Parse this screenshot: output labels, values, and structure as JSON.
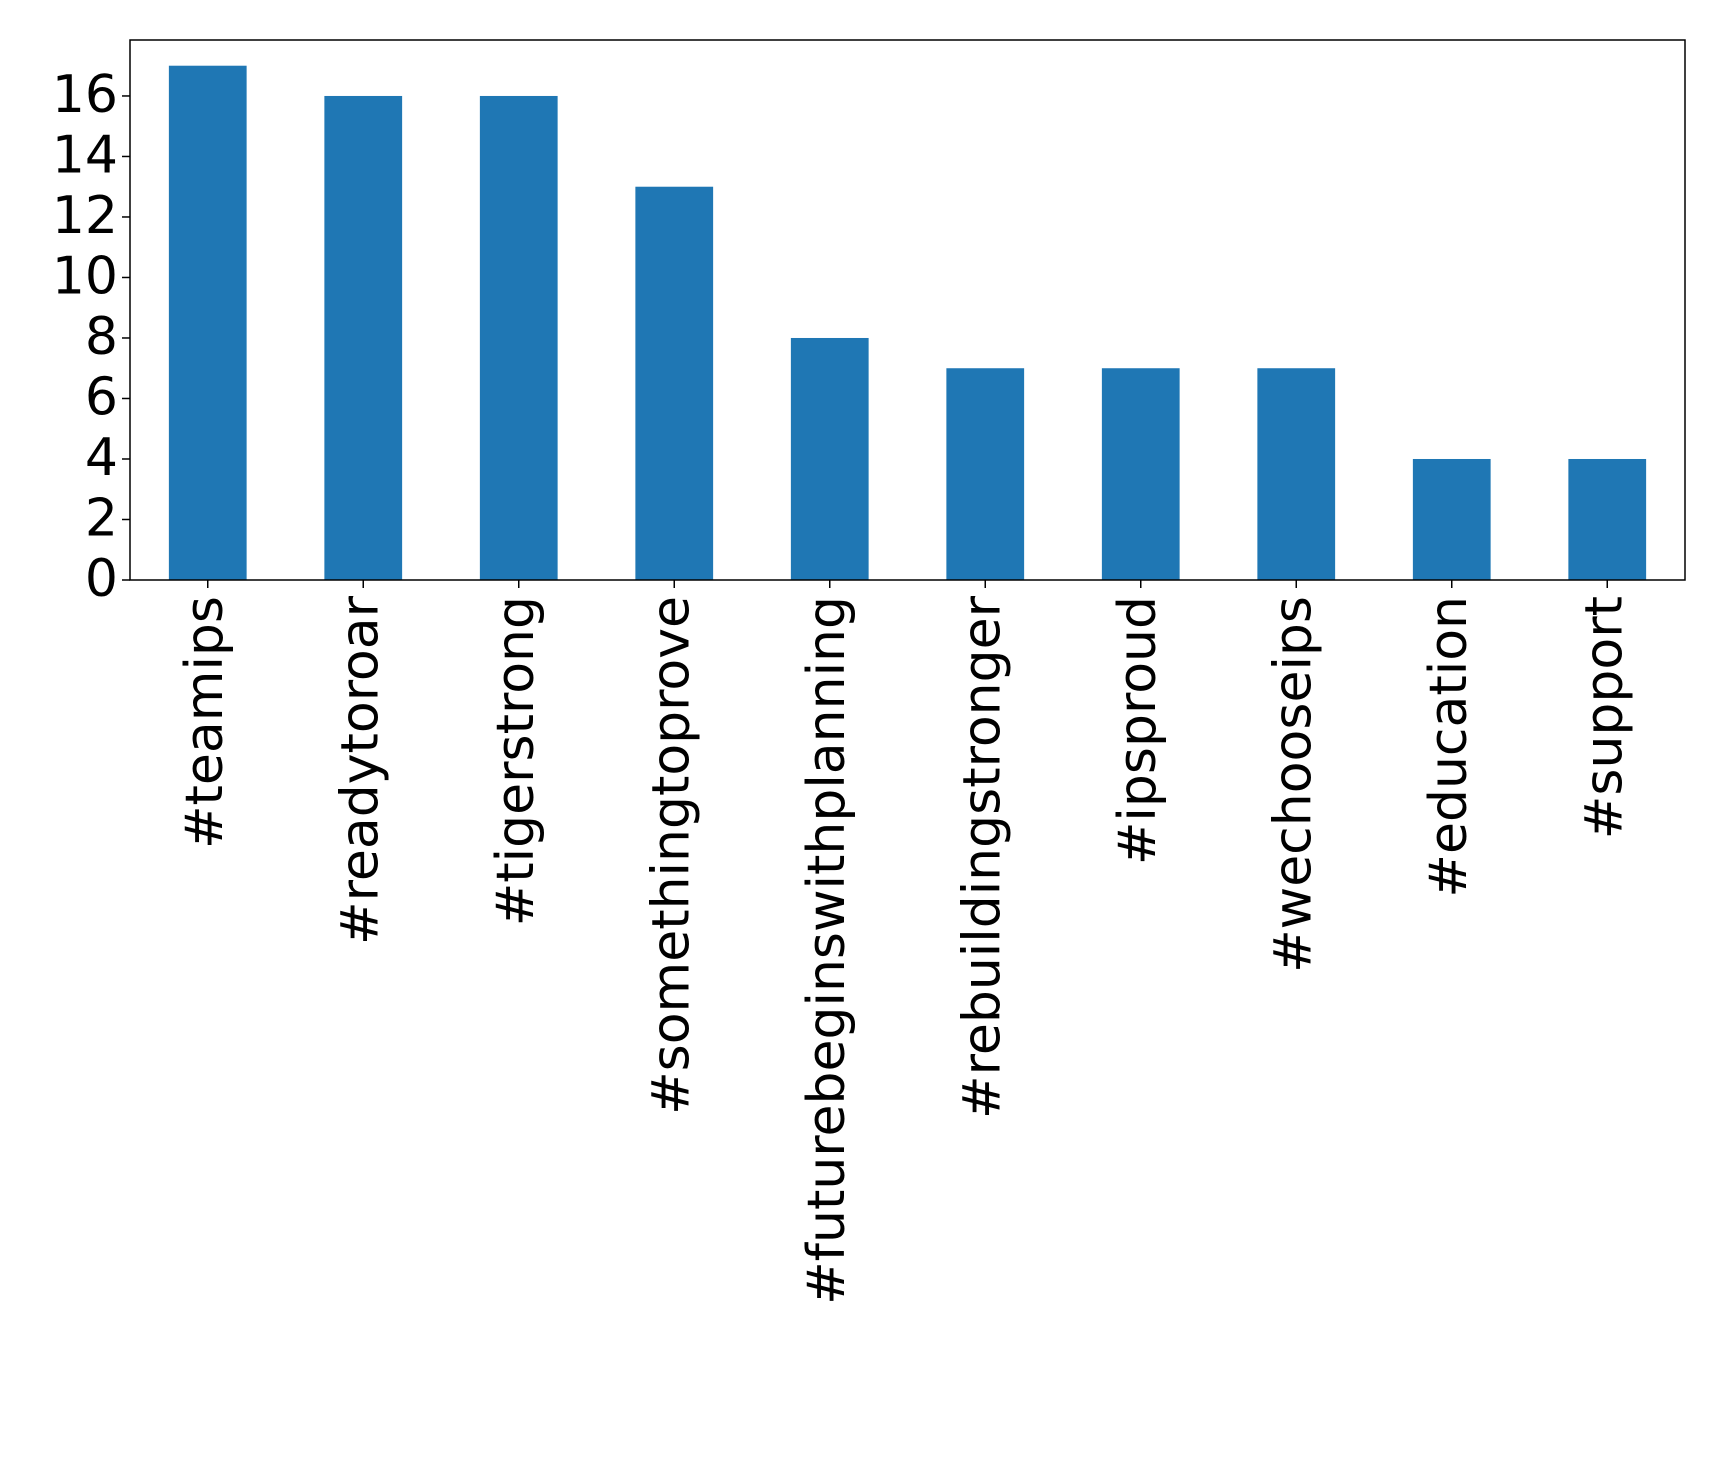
{
  "chart_data": {
    "type": "bar",
    "categories": [
      "#teamips",
      "#readytoroar",
      "#tigerstrong",
      "#somethingtoprove",
      "#futurebeginswithplanning",
      "#rebuildingstronger",
      "#ipsproud",
      "#wechooseips",
      "#education",
      "#support"
    ],
    "values": [
      17,
      16,
      16,
      13,
      8,
      7,
      7,
      7,
      4,
      4
    ],
    "color": "#1f77b4",
    "ylim": [
      0,
      17.85
    ],
    "yticks": [
      0,
      2,
      4,
      6,
      8,
      10,
      12,
      14,
      16
    ],
    "grid": false
  }
}
